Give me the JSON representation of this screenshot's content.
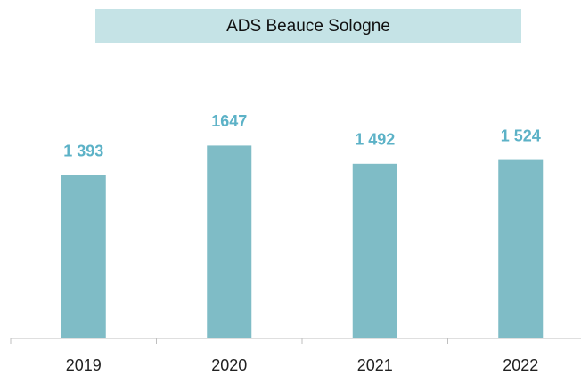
{
  "chart_data": {
    "type": "bar",
    "title": "ADS Beauce Sologne",
    "categories": [
      "2019",
      "2020",
      "2021",
      "2022"
    ],
    "values": [
      1393,
      1647,
      1492,
      1524
    ],
    "value_labels": [
      "1 393",
      "1647",
      "1 492",
      "1 524"
    ],
    "color": "#7fbcc6",
    "ylim": [
      0,
      2000
    ]
  }
}
